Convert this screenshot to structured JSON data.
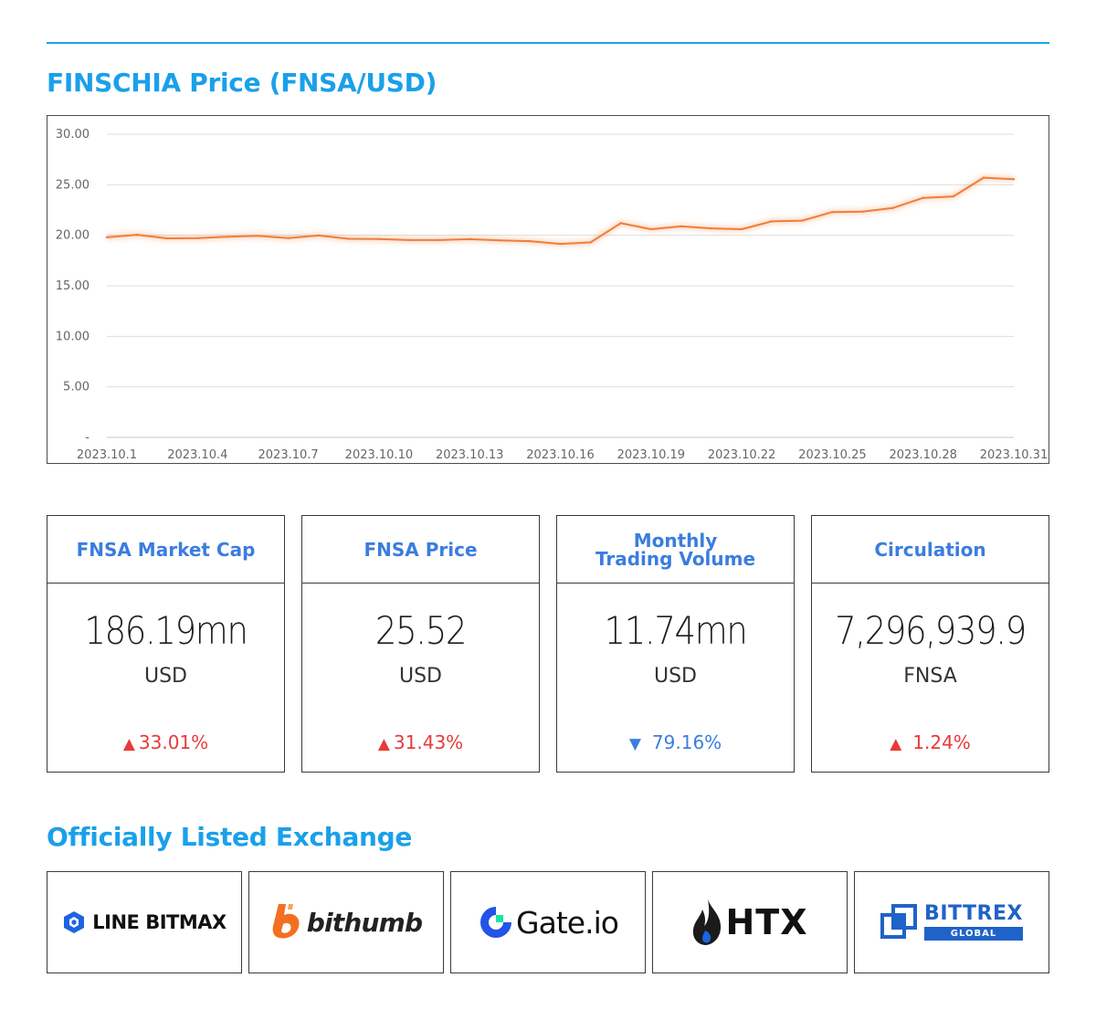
{
  "price_heading": "FINSCHIA Price (FNSA/USD)",
  "chart_data": {
    "type": "line",
    "title": "",
    "xlabel": "",
    "ylabel": "",
    "ylim": [
      0,
      30
    ],
    "y_ticks": [
      "-",
      "5.00",
      "10.00",
      "15.00",
      "20.00",
      "25.00",
      "30.00"
    ],
    "x_ticks": [
      "2023.10.1",
      "2023.10.4",
      "2023.10.7",
      "2023.10.10",
      "2023.10.13",
      "2023.10.16",
      "2023.10.19",
      "2023.10.22",
      "2023.10.25",
      "2023.10.28",
      "2023.10.31"
    ],
    "grid": true,
    "line_color": "#f07e3a",
    "x": [
      1,
      2,
      3,
      4,
      5,
      6,
      7,
      8,
      9,
      10,
      11,
      12,
      13,
      14,
      15,
      16,
      17,
      18,
      19,
      20,
      21,
      22,
      23,
      24,
      25,
      26,
      27,
      28,
      29,
      30,
      31
    ],
    "values": [
      19.8,
      20.05,
      19.7,
      19.72,
      19.85,
      19.95,
      19.72,
      19.98,
      19.65,
      19.63,
      19.53,
      19.53,
      19.62,
      19.5,
      19.42,
      19.15,
      19.3,
      21.2,
      20.6,
      20.88,
      20.68,
      20.6,
      21.38,
      21.45,
      22.3,
      22.35,
      22.7,
      23.7,
      23.85,
      25.7,
      25.55
    ]
  },
  "stats": [
    {
      "title": "FNSA Market Cap",
      "value": "186.19mn",
      "unit": "USD",
      "change": "33.01%",
      "direction": "up",
      "arrow": "▲"
    },
    {
      "title": "FNSA Price",
      "value": "25.52",
      "unit": "USD",
      "change": "31.43%",
      "direction": "up",
      "arrow": "▲"
    },
    {
      "title": "Monthly\nTrading Volume",
      "value": "11.74mn",
      "unit": "USD",
      "change": "79.16%",
      "direction": "down",
      "arrow": "▼"
    },
    {
      "title": "Circulation",
      "value": "7,296,939.9",
      "unit": "FNSA",
      "change": "1.24%",
      "direction": "up",
      "arrow": "▲"
    }
  ],
  "exchange_heading": "Officially Listed Exchange",
  "exchanges": [
    {
      "name": "LINE BITMAX",
      "icon": "line-bitmax-logo-icon"
    },
    {
      "name": "bithumb",
      "icon": "bithumb-logo-icon"
    },
    {
      "name": "Gate.io",
      "icon": "gate-logo-icon"
    },
    {
      "name": "HTX",
      "icon": "htx-flame-icon"
    },
    {
      "name": "BITTREX",
      "sub": "GLOBAL",
      "icon": "bittrex-logo-icon"
    }
  ],
  "colors": {
    "accent": "#1aa0ea",
    "card_title": "#3b7dde",
    "up": "#e83a3a",
    "down": "#3b7dde",
    "line": "#f07e3a",
    "bittrex": "#1f63c8",
    "bithumb": "#f37021",
    "gate": "#2354e6",
    "gate_square": "#17e6a1"
  }
}
